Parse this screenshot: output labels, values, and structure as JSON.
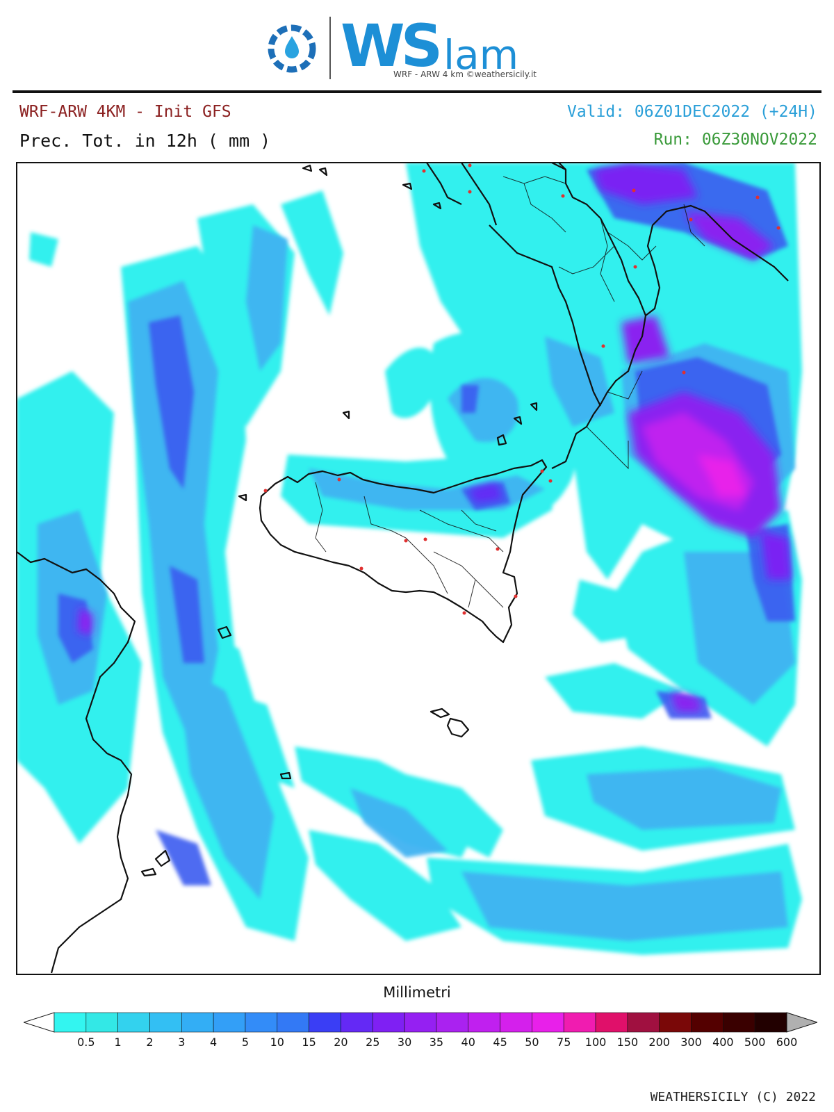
{
  "logo": {
    "icon": "gear-droplet-icon",
    "brand_main": "WS",
    "brand_suffix": "lam",
    "credit": "WRF - ARW 4 km ©weathersicily.it"
  },
  "header": {
    "model": "WRF-ARW 4KM - Init GFS",
    "field": "Prec. Tot. in 12h ( mm )",
    "valid": "Valid: 06Z01DEC2022 (+24H)",
    "run": "Run: 06Z30NOV2022"
  },
  "colors": {
    "model_text": "#8b2020",
    "valid_text": "#2a9fd8",
    "run_text": "#3a9a3a",
    "coast": "#111111",
    "city_dot": "#e03030"
  },
  "colorbar": {
    "title": "Millimetri",
    "labels": [
      "0.5",
      "1",
      "2",
      "3",
      "4",
      "5",
      "10",
      "15",
      "20",
      "25",
      "30",
      "35",
      "40",
      "45",
      "50",
      "75",
      "100",
      "150",
      "200",
      "300",
      "400",
      "500",
      "600"
    ],
    "colors": [
      "#33f5f0",
      "#33e8e6",
      "#33d2ee",
      "#33bff3",
      "#33aef5",
      "#339ff7",
      "#338cf8",
      "#3379f5",
      "#3a3ef5",
      "#6429f5",
      "#7f20f3",
      "#9520f2",
      "#aa22f0",
      "#c020ef",
      "#d420ec",
      "#e820ea",
      "#f01cb0",
      "#e0106a",
      "#a01040",
      "#7a0808",
      "#540000",
      "#3a0000",
      "#220000"
    ],
    "under_color": "#ffffff",
    "over_color": "#b0b0b0"
  },
  "footer": "WEATHERSICILY (C) 2022"
}
